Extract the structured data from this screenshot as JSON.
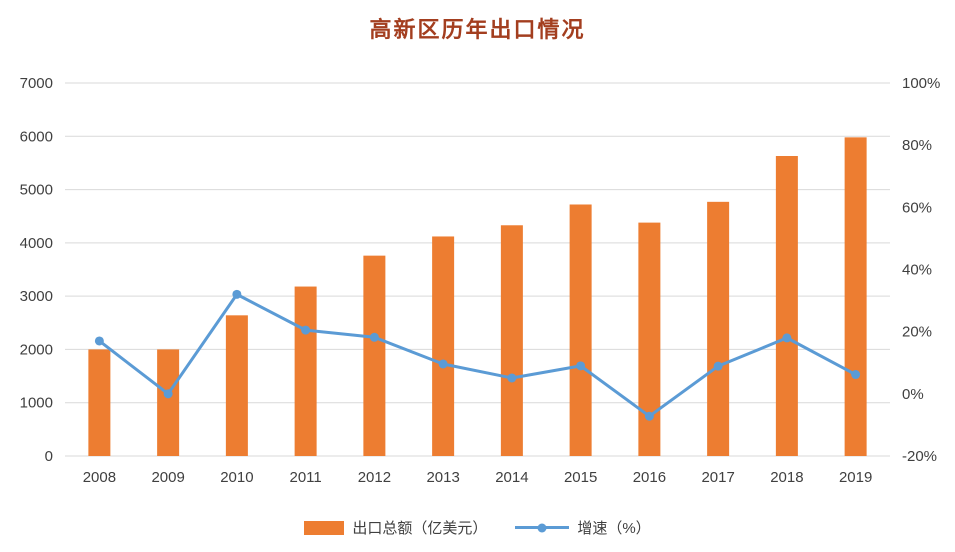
{
  "chart_data": {
    "type": "combo",
    "title": "高新区历年出口情况",
    "title_color": "#a33e1f",
    "categories": [
      "2008",
      "2009",
      "2010",
      "2011",
      "2012",
      "2013",
      "2014",
      "2015",
      "2016",
      "2017",
      "2018",
      "2019"
    ],
    "series": [
      {
        "name": "出口总额（亿美元）",
        "type": "bar",
        "axis": "left",
        "color": "#ed7d31",
        "values": [
          2000,
          2000,
          2640,
          3180,
          3760,
          4120,
          4330,
          4720,
          4380,
          4770,
          5630,
          5980
        ]
      },
      {
        "name": "增速（%）",
        "type": "line",
        "axis": "right",
        "color": "#5b9bd5",
        "values": [
          17.0,
          0.0,
          32.0,
          20.5,
          18.2,
          9.6,
          5.1,
          9.0,
          -7.2,
          8.9,
          18.0,
          6.2
        ]
      }
    ],
    "left_axis": {
      "min": 0,
      "max": 7000,
      "step": 1000,
      "ticks": [
        "0",
        "1000",
        "2000",
        "3000",
        "4000",
        "5000",
        "6000",
        "7000"
      ]
    },
    "right_axis": {
      "min": -20,
      "max": 100,
      "step": 20,
      "ticks": [
        "-20%",
        "0%",
        "20%",
        "40%",
        "60%",
        "80%",
        "100%"
      ]
    },
    "grid": true,
    "grid_color": "#d9d9d9",
    "legend_position": "bottom"
  }
}
